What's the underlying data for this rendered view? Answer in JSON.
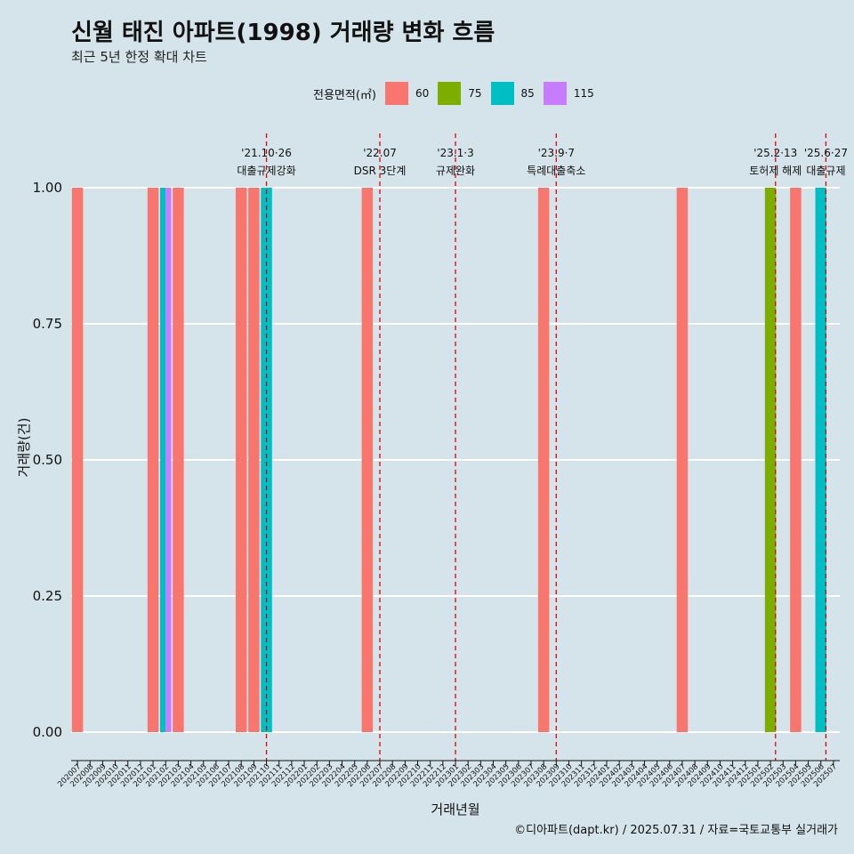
{
  "title": "신월 태진 아파트(1998) 거래량 변화 흐름",
  "subtitle": "최근 5년 한정 확대 차트",
  "caption": "©디아파트(dapt.kr) / 2025.07.31 / 자료=국토교통부 실거래가",
  "legend": {
    "title": "전용면적(㎡)",
    "items": [
      {
        "label": "60",
        "color": "#f8766d"
      },
      {
        "label": "75",
        "color": "#7cae00"
      },
      {
        "label": "85",
        "color": "#00bfc4"
      },
      {
        "label": "115",
        "color": "#c77cff"
      }
    ]
  },
  "chart_data": {
    "type": "bar",
    "xlabel": "거래년월",
    "ylabel": "거래량(건)",
    "ylim": [
      0,
      1
    ],
    "yticks": [
      "0.00",
      "0.25",
      "0.50",
      "0.75",
      "1.00"
    ],
    "grid": true,
    "legend_position": "top",
    "categories": [
      "202007",
      "202008",
      "202009",
      "202010",
      "202011",
      "202012",
      "202101",
      "202102",
      "202103",
      "202104",
      "202105",
      "202106",
      "202107",
      "202108",
      "202109",
      "202110",
      "202111",
      "202112",
      "202201",
      "202202",
      "202203",
      "202204",
      "202205",
      "202206",
      "202207",
      "202208",
      "202209",
      "202210",
      "202211",
      "202212",
      "202301",
      "202302",
      "202303",
      "202304",
      "202305",
      "202306",
      "202307",
      "202308",
      "202309",
      "202310",
      "202311",
      "202312",
      "202401",
      "202402",
      "202403",
      "202404",
      "202405",
      "202406",
      "202407",
      "202408",
      "202409",
      "202410",
      "202411",
      "202412",
      "202501",
      "202502",
      "202503",
      "202504",
      "202505",
      "202506",
      "202507"
    ],
    "bars": [
      {
        "month": "202007",
        "series": [
          "60"
        ],
        "value": 1
      },
      {
        "month": "202101",
        "series": [
          "60"
        ],
        "value": 1
      },
      {
        "month": "202102",
        "series": [
          "85",
          "115"
        ],
        "value": 1
      },
      {
        "month": "202103",
        "series": [
          "60"
        ],
        "value": 1
      },
      {
        "month": "202108",
        "series": [
          "60"
        ],
        "value": 1
      },
      {
        "month": "202109",
        "series": [
          "60"
        ],
        "value": 1
      },
      {
        "month": "202110",
        "series": [
          "85"
        ],
        "value": 1
      },
      {
        "month": "202206",
        "series": [
          "60"
        ],
        "value": 1
      },
      {
        "month": "202308",
        "series": [
          "60"
        ],
        "value": 1
      },
      {
        "month": "202407",
        "series": [
          "60"
        ],
        "value": 1
      },
      {
        "month": "202502",
        "series": [
          "75"
        ],
        "value": 1
      },
      {
        "month": "202504",
        "series": [
          "60"
        ],
        "value": 1
      },
      {
        "month": "202506",
        "series": [
          "85"
        ],
        "value": 1
      }
    ],
    "annotations": [
      {
        "month": "202110",
        "offset": 0,
        "date": "'21.10·26",
        "text": "대출규제강화"
      },
      {
        "month": "202207",
        "offset": 0,
        "date": "'22.07",
        "text": "DSR 3단계"
      },
      {
        "month": "202301",
        "offset": 0,
        "date": "'23.1·3",
        "text": "규제완화"
      },
      {
        "month": "202309",
        "offset": 0,
        "date": "'23.9·7",
        "text": "특례대출축소"
      },
      {
        "month": "202502",
        "offset": 0.4,
        "date": "'25.2·13",
        "text": "토허제 해제"
      },
      {
        "month": "202506",
        "offset": 0.4,
        "date": "'25.6·27",
        "text": "대출규제"
      }
    ]
  }
}
